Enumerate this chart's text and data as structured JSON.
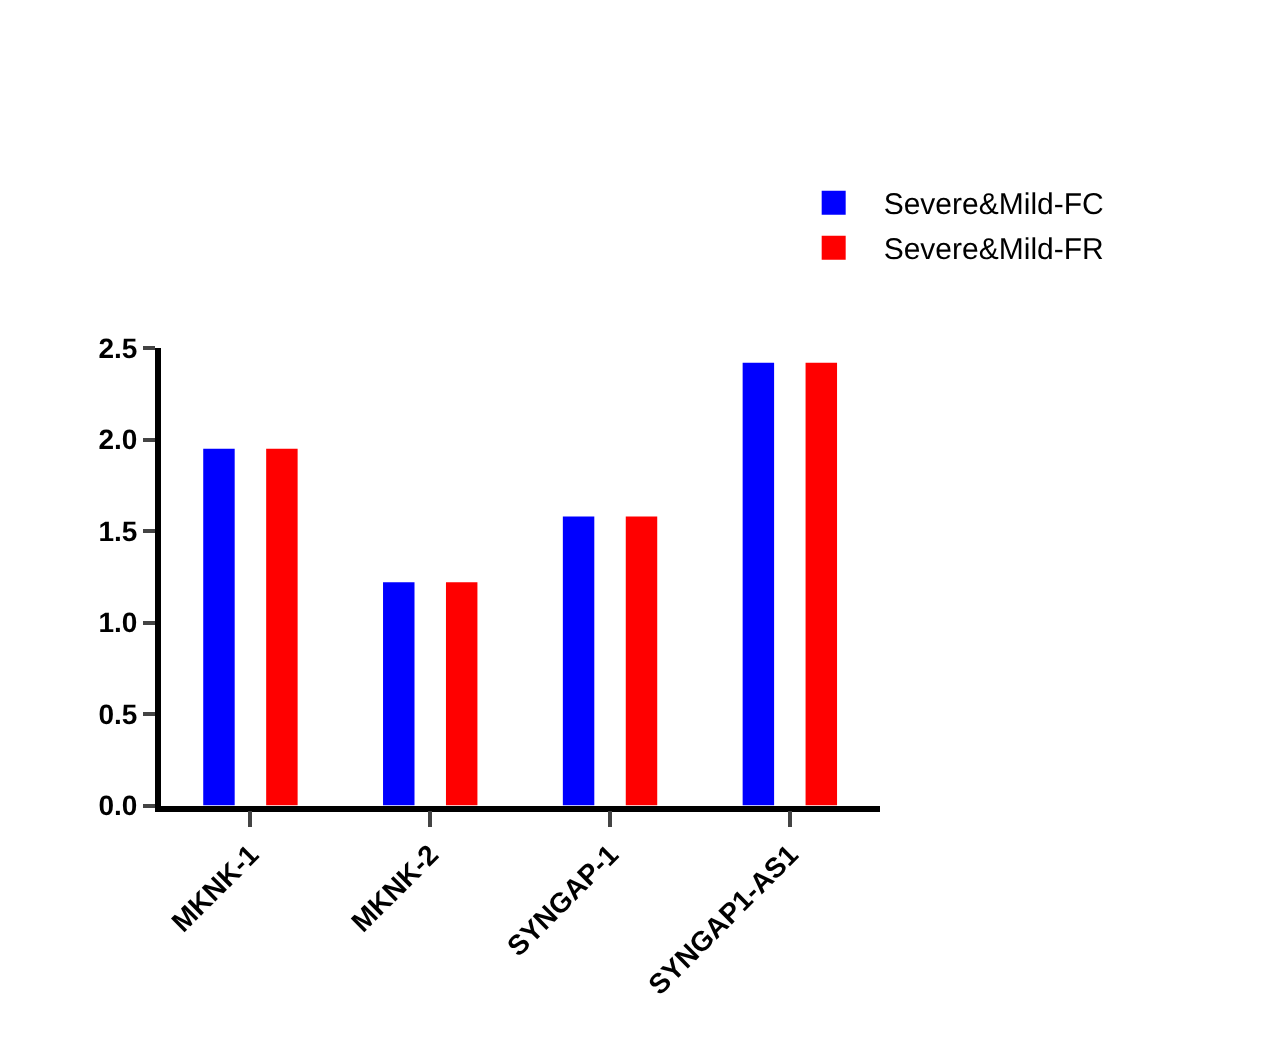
{
  "chart_data": {
    "type": "bar",
    "categories": [
      "MKNK-1",
      "MKNK-2",
      "SYNGAP-1",
      "SYNGAP1-AS1"
    ],
    "series": [
      {
        "name": "Severe&Mild-FC",
        "color": "#0000ff",
        "values": [
          1.95,
          1.22,
          1.58,
          2.42
        ]
      },
      {
        "name": "Severe&Mild-FR",
        "color": "#ff0000",
        "values": [
          1.95,
          1.22,
          1.58,
          2.42
        ]
      }
    ],
    "ylim": [
      0,
      2.5
    ],
    "yticks": [
      {
        "value": 0,
        "label": "0.0"
      },
      {
        "value": 0.5,
        "label": "0.5"
      },
      {
        "value": 1.0,
        "label": "1.0"
      },
      {
        "value": 1.5,
        "label": "1.5"
      },
      {
        "value": 2.0,
        "label": "2.0"
      },
      {
        "value": 2.5,
        "label": "2.5"
      }
    ],
    "legend": "top right"
  }
}
